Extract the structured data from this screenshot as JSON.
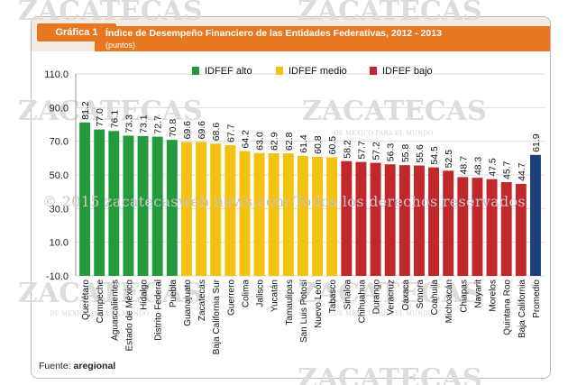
{
  "header": {
    "tag": "Gráfica 1",
    "title": "Índice de  Desempeño Financiero de las Entidades Federativas, 2012 - 2013",
    "subtitle": "(puntos)"
  },
  "footer": {
    "source_label": "Fuente: ",
    "source_value": "aregional"
  },
  "watermark": {
    "brand": "ZACATECAS",
    "brand_sub": "WEB NEWS",
    "tagline": "DE MÉXICO PARA EL MUNDO",
    "copyright": "© 2015 zacatecasweb news.com Todos los derechos reservados"
  },
  "colors": {
    "alto": "#239b3c",
    "medio": "#f5c214",
    "bajo": "#c1272d",
    "promedio": "#1f3f7a"
  },
  "chart_data": {
    "type": "bar",
    "title": "Índice de  Desempeño Financiero de las Entidades Federativas, 2012 - 2013",
    "ylabel": "puntos",
    "ylim": [
      -10,
      110
    ],
    "yticks": [
      "110.0",
      "90.0",
      "70.0",
      "50.0",
      "30.0",
      "10.0",
      "-10.0"
    ],
    "legend": [
      {
        "label": "IDFEF alto",
        "group": "alto"
      },
      {
        "label": "IDFEF medio",
        "group": "medio"
      },
      {
        "label": "IDFEF bajo",
        "group": "bajo"
      }
    ],
    "categories": [
      "Querétaro",
      "Campeche",
      "Aguascalientes",
      "Estado de México",
      "Hidalgo",
      "Distrito Federal",
      "Puebla",
      "Guanajuato",
      "Zacatecas",
      "Baja California Sur",
      "Guerrero",
      "Colima",
      "Jalisco",
      "Yucatán",
      "Tamaulipas",
      "San Luis Potosí",
      "Nuevo León",
      "Tabasco",
      "Sinaloa",
      "Chihuahua",
      "Durango",
      "Veracruz",
      "Oaxaca",
      "Sonora",
      "Coahuila",
      "Michoacán",
      "Chiapas",
      "Nayarit",
      "Morelos",
      "Quintana Roo",
      "Baja California",
      "Promedio"
    ],
    "values": [
      81.2,
      77.0,
      76.1,
      73.3,
      73.1,
      72.7,
      70.8,
      69.6,
      69.6,
      68.6,
      67.7,
      64.2,
      63.0,
      62.9,
      62.8,
      61.4,
      60.8,
      60.5,
      58.2,
      57.7,
      57.2,
      56.3,
      55.8,
      55.6,
      54.5,
      52.5,
      48.7,
      48.3,
      47.5,
      45.7,
      44.7,
      61.9
    ],
    "value_labels": [
      "81.2",
      "77.0",
      "76.1",
      "73.3",
      "73.1",
      "72.7",
      "70.8",
      "69.6",
      "69.6",
      "68.6",
      "67.7",
      "64.2",
      "63.0",
      "62.9",
      "62.8",
      "61.4",
      "60.8",
      "60.5",
      "58.2",
      "57.7",
      "57.2",
      "56.3",
      "55.8",
      "55.6",
      "54.5",
      "52.5",
      "48.7",
      "48.3",
      "47.5",
      "45.7",
      "44.7",
      "61.9"
    ],
    "groups": [
      "alto",
      "alto",
      "alto",
      "alto",
      "alto",
      "alto",
      "alto",
      "medio",
      "medio",
      "medio",
      "medio",
      "medio",
      "medio",
      "medio",
      "medio",
      "medio",
      "medio",
      "medio",
      "bajo",
      "bajo",
      "bajo",
      "bajo",
      "bajo",
      "bajo",
      "bajo",
      "bajo",
      "bajo",
      "bajo",
      "bajo",
      "bajo",
      "bajo",
      "promedio"
    ]
  }
}
